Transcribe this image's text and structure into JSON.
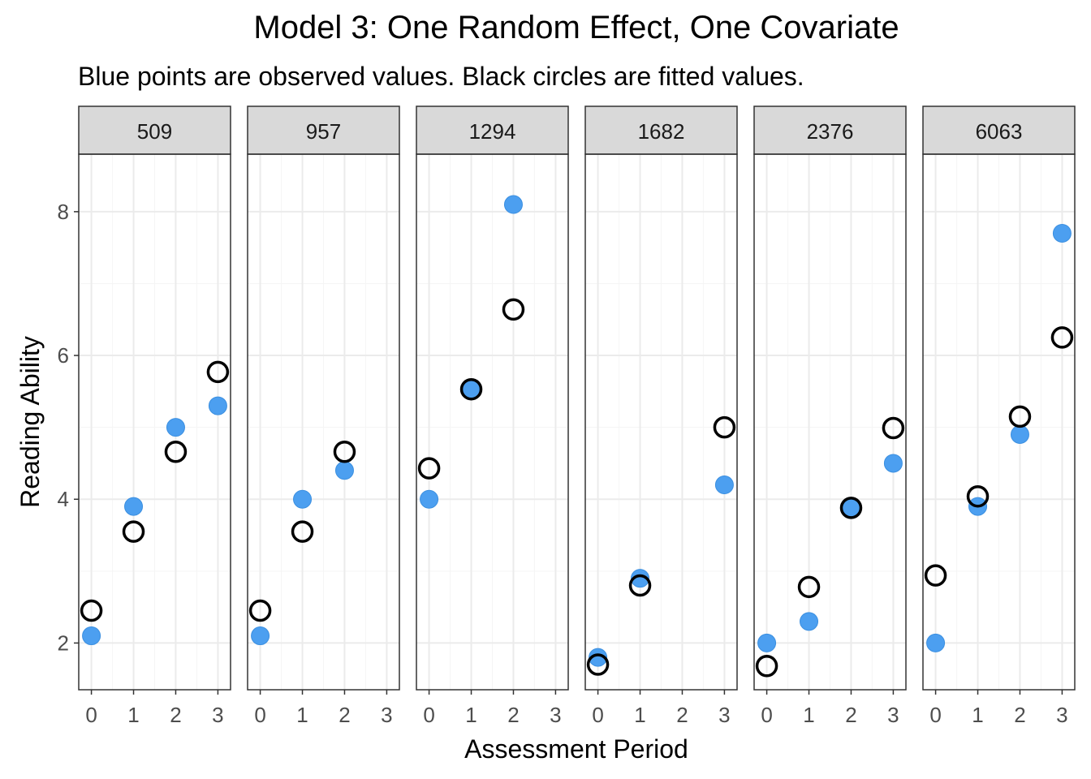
{
  "chart_data": {
    "type": "scatter",
    "title": "Model 3: One Random Effect, One Covariate",
    "subtitle": "Blue points are observed values. Black circles are fitted values.",
    "xlabel": "Assessment Period",
    "ylabel": "Reading Ability",
    "x_ticks": [
      0,
      1,
      2,
      3
    ],
    "y_ticks": [
      2,
      4,
      6,
      8
    ],
    "xlim": [
      -0.3,
      3.3
    ],
    "ylim": [
      1.35,
      8.8
    ],
    "grid": true,
    "colors": {
      "observed": "#4c9ff0",
      "fitted": "#000000",
      "strip": "#d9d9d9",
      "grid_major": "#ebebeb",
      "grid_minor": "#f5f5f5",
      "axis_text": "#4d4d4d"
    },
    "panels": [
      {
        "label": "509",
        "observed": [
          {
            "x": 0,
            "y": 2.1
          },
          {
            "x": 1,
            "y": 3.9
          },
          {
            "x": 2,
            "y": 5.0
          },
          {
            "x": 3,
            "y": 5.3
          }
        ],
        "fitted": [
          {
            "x": 0,
            "y": 2.45
          },
          {
            "x": 1,
            "y": 3.55
          },
          {
            "x": 2,
            "y": 4.66
          },
          {
            "x": 3,
            "y": 5.77
          }
        ]
      },
      {
        "label": "957",
        "observed": [
          {
            "x": 0,
            "y": 2.1
          },
          {
            "x": 1,
            "y": 4.0
          },
          {
            "x": 2,
            "y": 4.4
          }
        ],
        "fitted": [
          {
            "x": 0,
            "y": 2.45
          },
          {
            "x": 1,
            "y": 3.55
          },
          {
            "x": 2,
            "y": 4.66
          }
        ]
      },
      {
        "label": "1294",
        "observed": [
          {
            "x": 0,
            "y": 4.0
          },
          {
            "x": 1,
            "y": 5.53
          },
          {
            "x": 2,
            "y": 8.1
          }
        ],
        "fitted": [
          {
            "x": 0,
            "y": 4.43
          },
          {
            "x": 1,
            "y": 5.53
          },
          {
            "x": 2,
            "y": 6.64
          }
        ]
      },
      {
        "label": "1682",
        "observed": [
          {
            "x": 0,
            "y": 1.8
          },
          {
            "x": 1,
            "y": 2.9
          },
          {
            "x": 3,
            "y": 4.2
          }
        ],
        "fitted": [
          {
            "x": 0,
            "y": 1.7
          },
          {
            "x": 1,
            "y": 2.8
          },
          {
            "x": 3,
            "y": 5.0
          }
        ]
      },
      {
        "label": "2376",
        "observed": [
          {
            "x": 0,
            "y": 2.0
          },
          {
            "x": 1,
            "y": 2.3
          },
          {
            "x": 2,
            "y": 3.88
          },
          {
            "x": 3,
            "y": 4.5
          }
        ],
        "fitted": [
          {
            "x": 0,
            "y": 1.68
          },
          {
            "x": 1,
            "y": 2.78
          },
          {
            "x": 2,
            "y": 3.88
          },
          {
            "x": 3,
            "y": 4.99
          }
        ]
      },
      {
        "label": "6063",
        "observed": [
          {
            "x": 0,
            "y": 2.0
          },
          {
            "x": 1,
            "y": 3.9
          },
          {
            "x": 2,
            "y": 4.9
          },
          {
            "x": 3,
            "y": 7.7
          }
        ],
        "fitted": [
          {
            "x": 0,
            "y": 2.94
          },
          {
            "x": 1,
            "y": 4.04
          },
          {
            "x": 2,
            "y": 5.15
          },
          {
            "x": 3,
            "y": 6.25
          }
        ]
      }
    ]
  }
}
